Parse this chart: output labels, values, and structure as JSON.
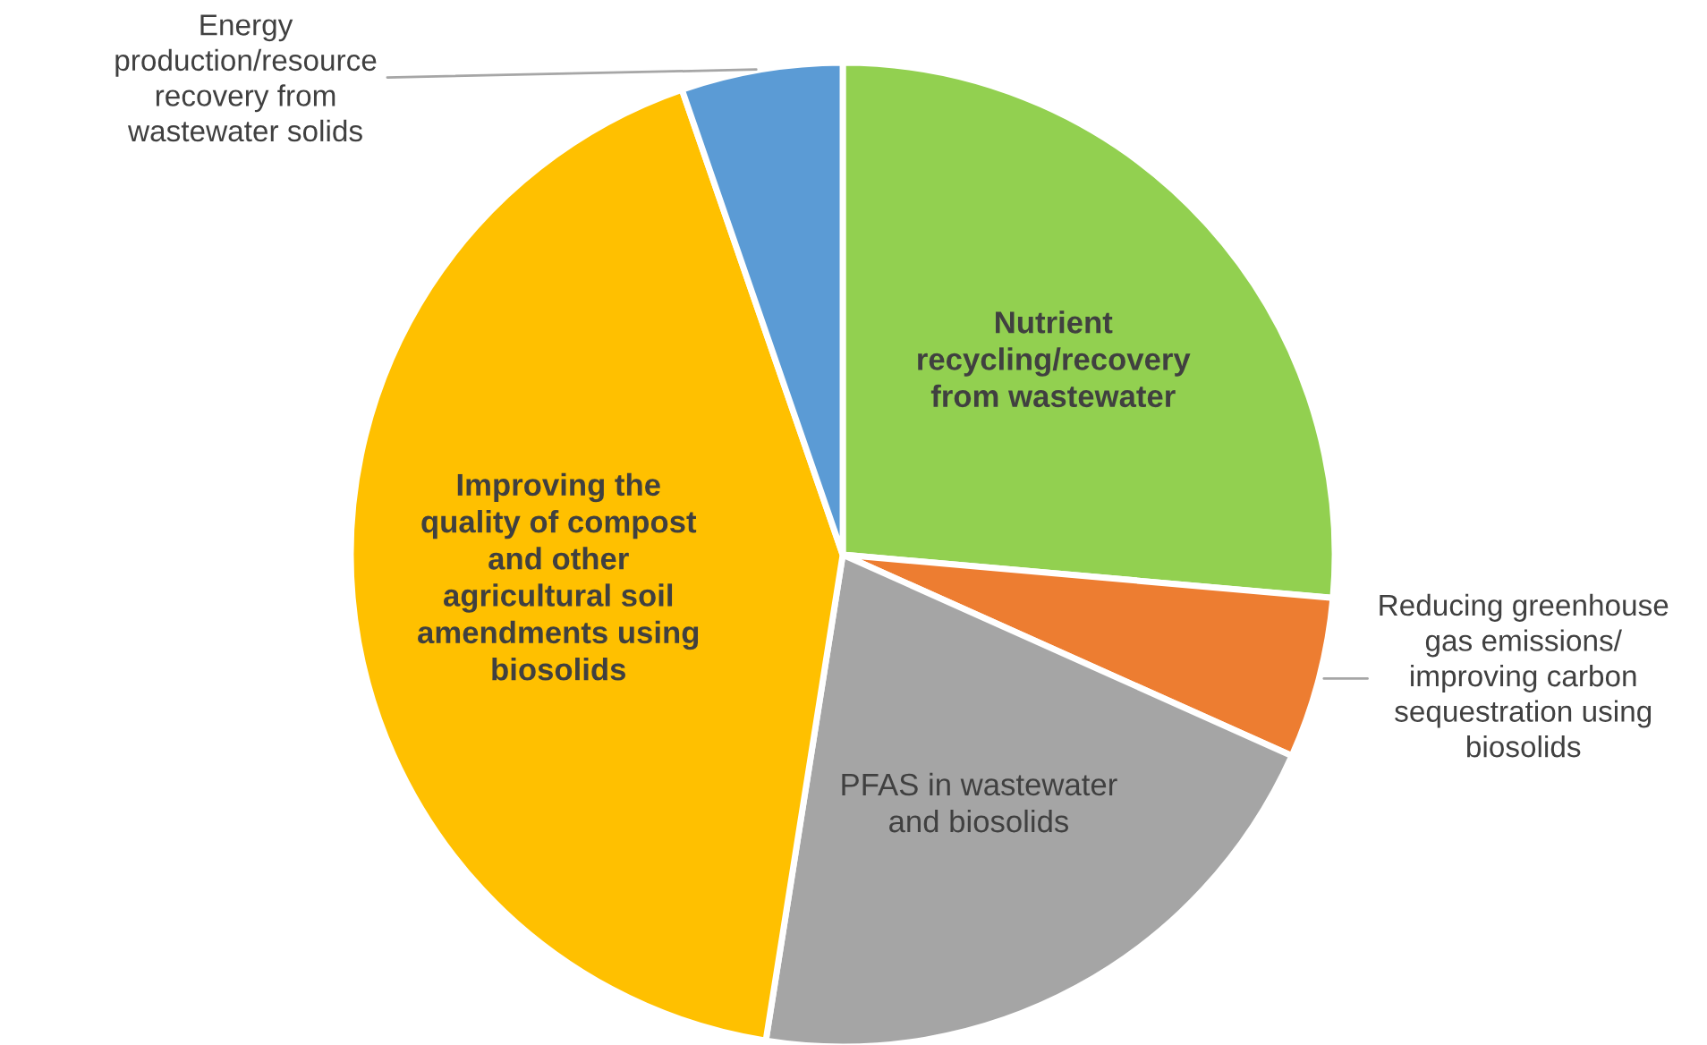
{
  "chart_data": {
    "type": "pie",
    "categories": [
      "Nutrient\nrecycling/recovery\nfrom wastewater",
      "Reducing greenhouse\ngas emissions/\nimproving carbon\nsequestration using\nbiosolids",
      "PFAS in wastewater\nand biosolids",
      "Improving the\nquality of compost\nand other\nagricultural soil\namendments using\nbiosolids",
      "Energy\nproduction/resource\nrecovery from\nwastewater solids"
    ],
    "values": [
      26.4,
      5.3,
      20.8,
      42.2,
      5.3
    ],
    "colors": [
      "#92d050",
      "#ed7d31",
      "#a5a5a5",
      "#ffc000",
      "#5b9bd5"
    ]
  }
}
